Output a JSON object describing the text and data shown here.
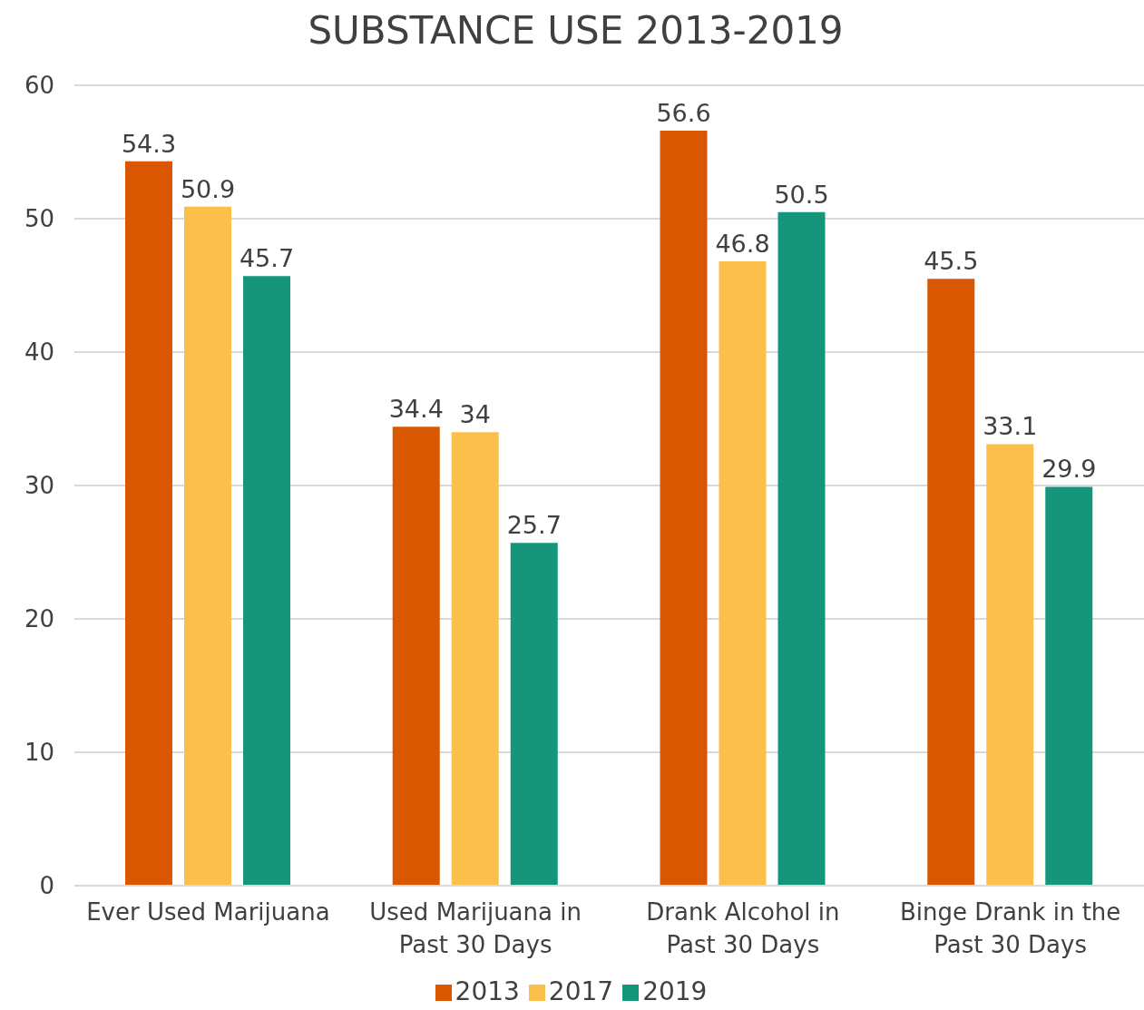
{
  "chart_data": {
    "type": "bar",
    "title": "SUBSTANCE USE 2013-2019",
    "categories": [
      "Ever Used Marijuana",
      "Used Marijuana in Past 30 Days",
      "Drank Alcohol in Past 30 Days",
      "Binge Drank in the Past 30 Days"
    ],
    "series": [
      {
        "name": "2013",
        "color": "#d95700",
        "values": [
          54.3,
          34.4,
          56.6,
          45.5
        ]
      },
      {
        "name": "2017",
        "color": "#fbbf4b",
        "values": [
          50.9,
          34,
          46.8,
          33.1
        ]
      },
      {
        "name": "2019",
        "color": "#15967b",
        "values": [
          45.7,
          25.7,
          50.5,
          29.9
        ]
      }
    ],
    "ylim": [
      0,
      60
    ],
    "yticks": [
      0,
      10,
      20,
      30,
      40,
      50,
      60
    ],
    "grid": "y",
    "legend": "bottom",
    "data_labels": true
  }
}
